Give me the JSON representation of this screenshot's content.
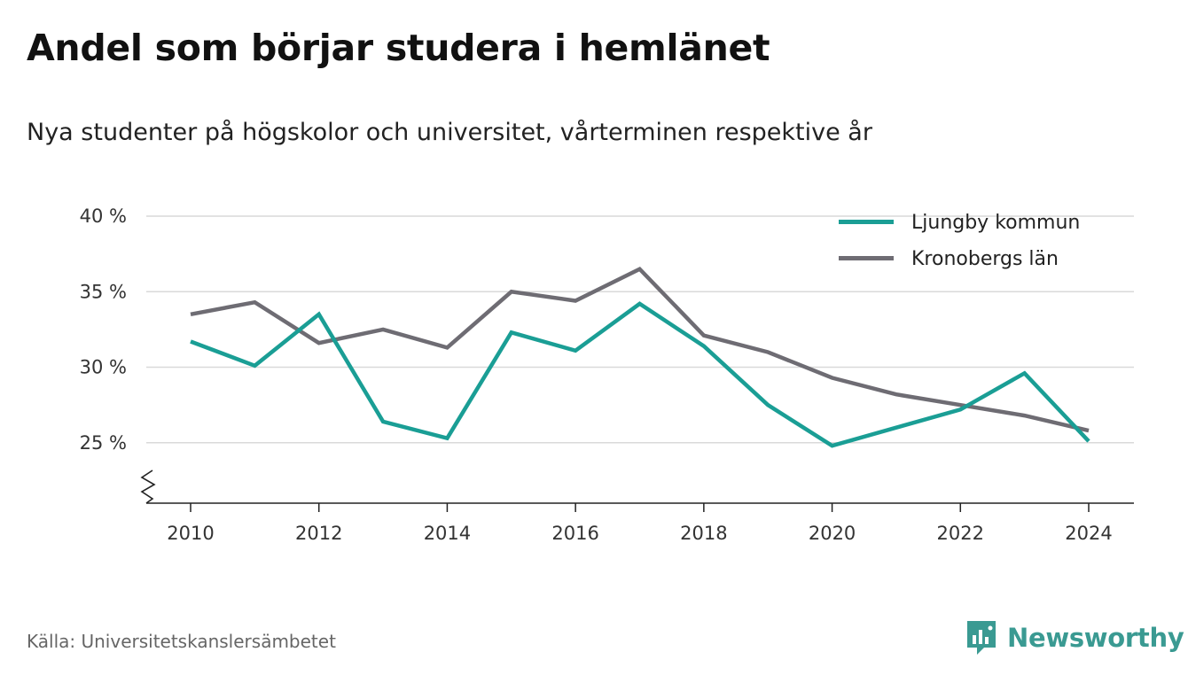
{
  "title": "Andel som börjar studera i hemlänet",
  "subtitle": "Nya studenter på högskolor och universitet, vårterminen respektive år",
  "source": "Källa: Universitetskanslersämbetet",
  "brand": {
    "name": "Newsworthy",
    "icon": "newsworthy-logo-icon",
    "color": "#3a9a92"
  },
  "chart_data": {
    "type": "line",
    "x": [
      2010,
      2011,
      2012,
      2013,
      2014,
      2015,
      2016,
      2017,
      2018,
      2019,
      2020,
      2021,
      2022,
      2023,
      2024
    ],
    "xticks": [
      "2010",
      "2012",
      "2014",
      "2016",
      "2018",
      "2020",
      "2022",
      "2024"
    ],
    "yticks": [
      "25 %",
      "30 %",
      "35 %",
      "40 %"
    ],
    "ylim": [
      21,
      40
    ],
    "axis_break": true,
    "grid": true,
    "legend_position": "top-right",
    "series": [
      {
        "name": "Ljungby kommun",
        "color": "#1a9e95",
        "values": [
          31.7,
          30.1,
          33.5,
          26.4,
          25.3,
          32.3,
          31.1,
          34.2,
          31.4,
          27.5,
          24.8,
          26.0,
          27.2,
          29.6,
          25.1
        ]
      },
      {
        "name": "Kronobergs län",
        "color": "#6e6c73",
        "values": [
          33.5,
          34.3,
          31.6,
          32.5,
          31.3,
          35.0,
          34.4,
          36.5,
          32.1,
          31.0,
          29.3,
          28.2,
          27.5,
          26.8,
          25.8
        ]
      }
    ]
  }
}
